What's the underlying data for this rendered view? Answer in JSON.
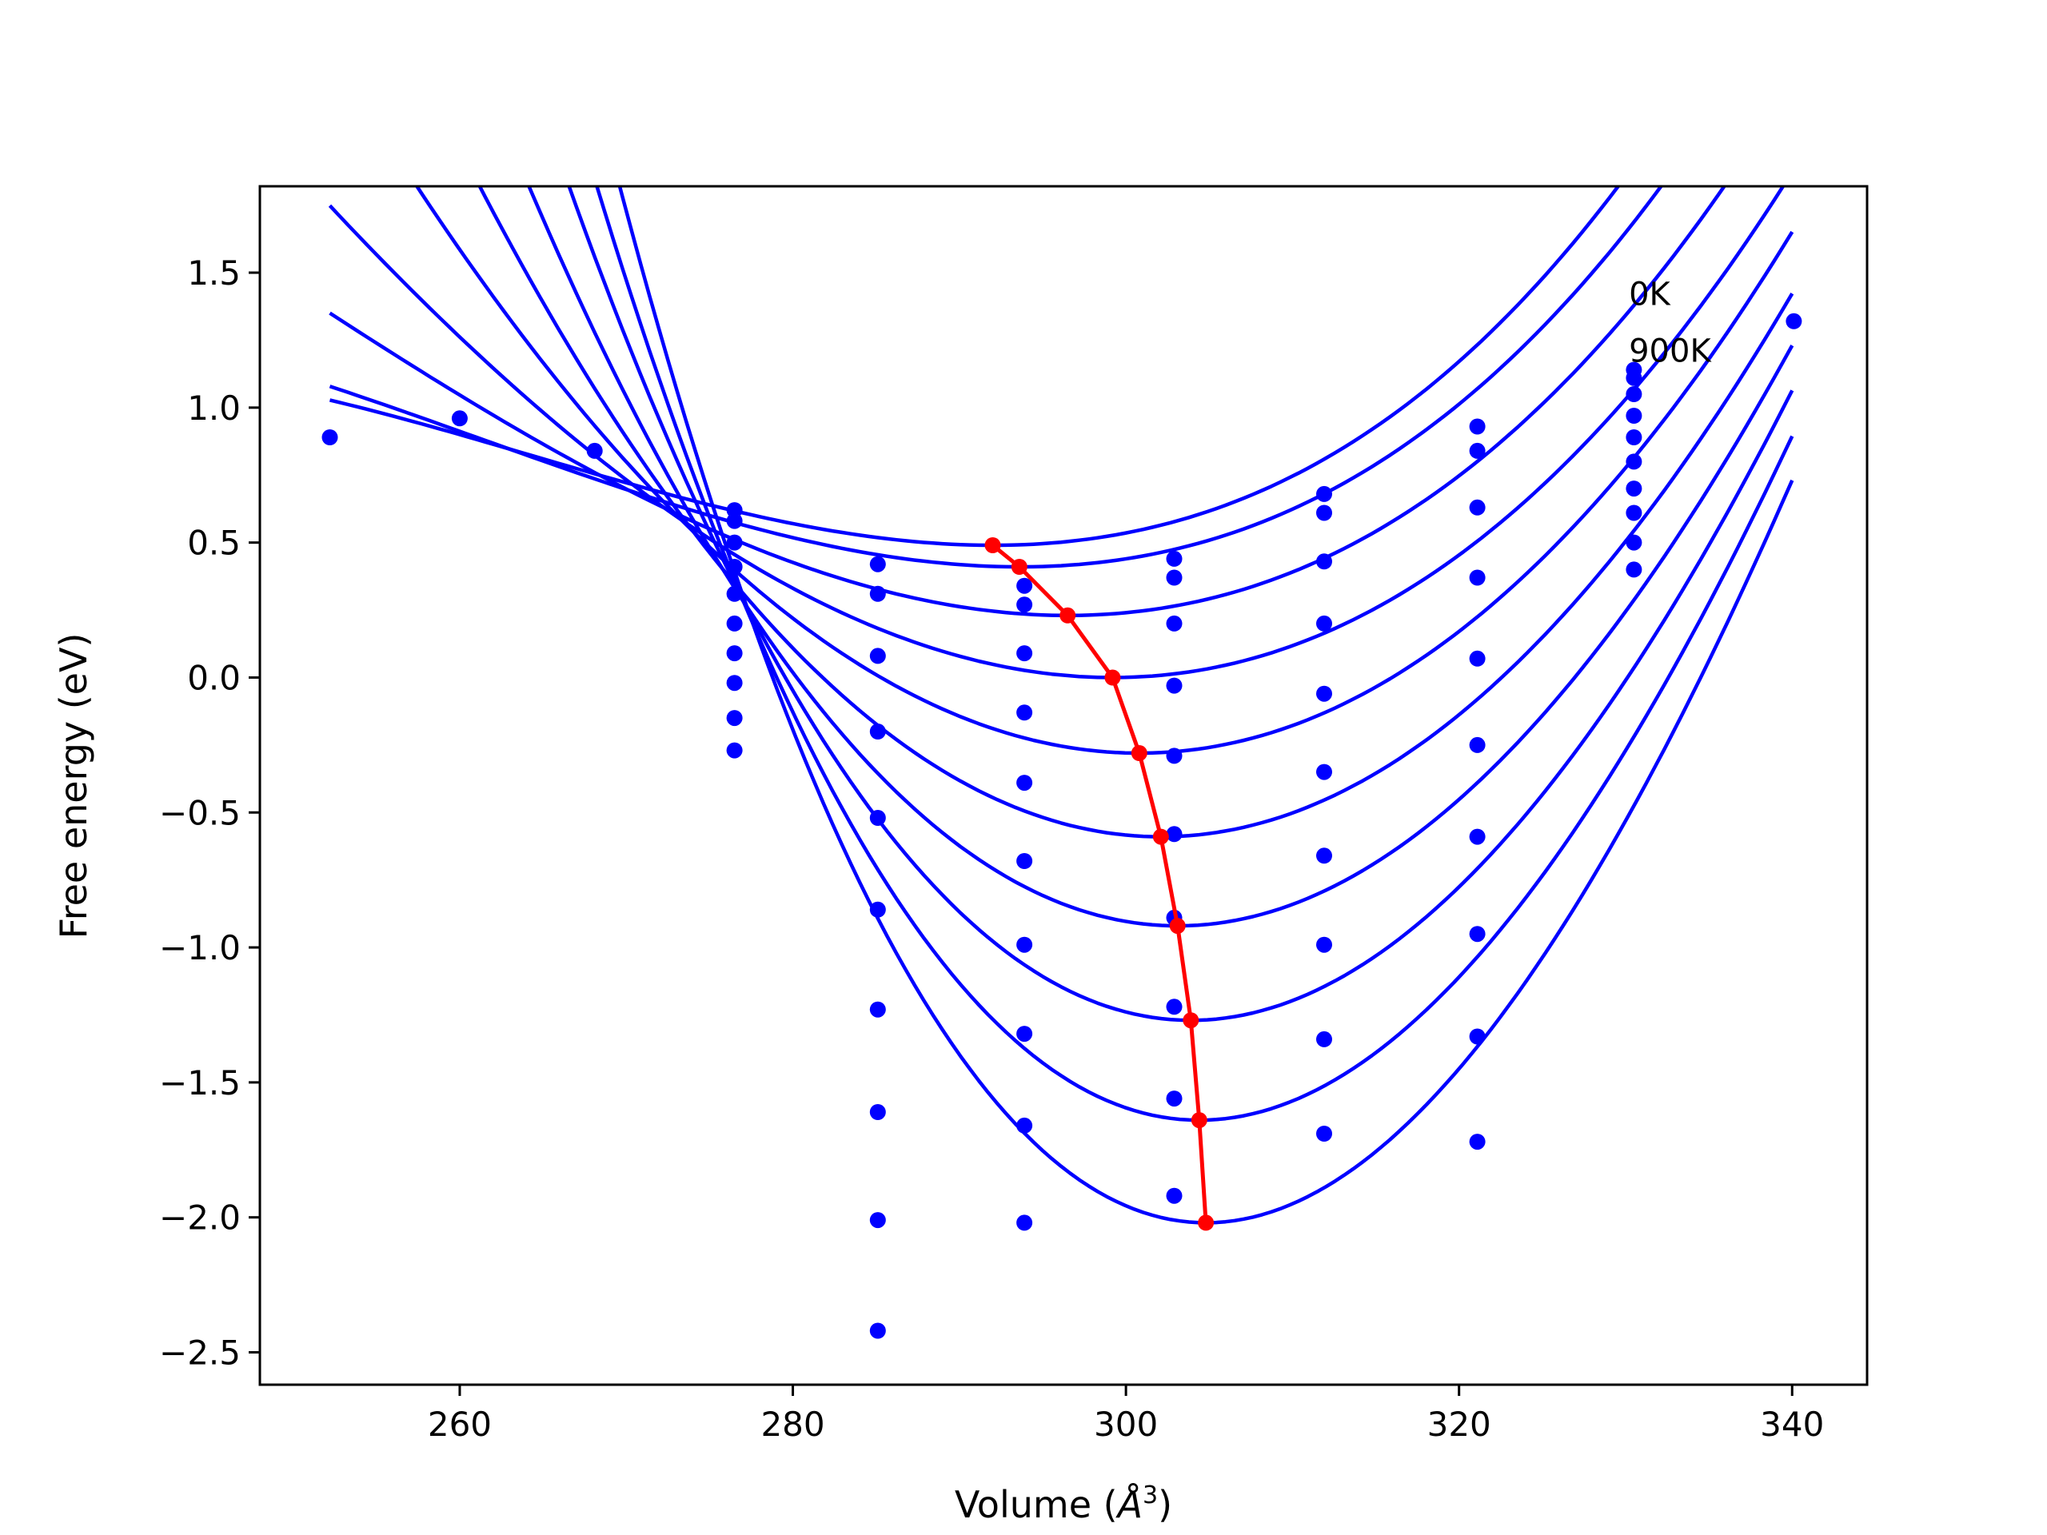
{
  "chart_data": {
    "type": "line",
    "title": "",
    "xlabel": "Volume (",
    "xlabel_symbol": "Å",
    "xlabel_exponent": "3",
    "xlabel_close": ")",
    "ylabel": "Free energy (eV)",
    "xlim": [
      248,
      344.5
    ],
    "ylim": [
      -2.62,
      1.82
    ],
    "xticks": [
      260,
      280,
      300,
      320,
      340
    ],
    "xtick_labels": [
      "260",
      "280",
      "300",
      "320",
      "340"
    ],
    "yticks": [
      -2.5,
      -2.0,
      -1.5,
      -1.0,
      -0.5,
      0.0,
      0.5,
      1.0,
      1.5
    ],
    "ytick_labels": [
      "−2.5",
      "−2.0",
      "−1.5",
      "−1.0",
      "−0.5",
      "0.0",
      "0.5",
      "1.0",
      "1.5"
    ],
    "grid": false,
    "annotations": [
      {
        "text": "0K",
        "x": 330.2,
        "y": 1.38
      },
      {
        "text": "900K",
        "x": 330.2,
        "y": 1.17
      }
    ],
    "fit_colour": "#0000ff",
    "point_colour": "#0000ff",
    "minimum_colour": "#ff0000",
    "fit_x_range": [
      252.2,
      340.0
    ],
    "fitted_curves": [
      {
        "v0": 292.0,
        "e0": 0.49,
        "a": 0.00065,
        "b": 7.8e-06
      },
      {
        "v0": 293.6,
        "e0": 0.41,
        "a": 0.00068,
        "b": 7e-06
      },
      {
        "v0": 296.5,
        "e0": 0.23,
        "a": 0.00081,
        "b": 5.4e-06
      },
      {
        "v0": 299.2,
        "e0": 0.0,
        "a": 0.00097,
        "b": 3.8e-06
      },
      {
        "v0": 300.8,
        "e0": -0.28,
        "a": 0.00119,
        "b": 1.7e-06
      },
      {
        "v0": 302.1,
        "e0": -0.59,
        "a": 0.00142,
        "b": -5e-07
      },
      {
        "v0": 303.1,
        "e0": -0.92,
        "a": 0.00169,
        "b": -3e-06
      },
      {
        "v0": 303.9,
        "e0": -1.27,
        "a": 0.002,
        "b": -5.8e-06
      },
      {
        "v0": 304.4,
        "e0": -1.64,
        "a": 0.00232,
        "b": -9e-06
      },
      {
        "v0": 304.8,
        "e0": -2.02,
        "a": 0.00266,
        "b": -1.25e-05
      }
    ],
    "equilibrium_line": {
      "x": [
        292.0,
        293.6,
        296.5,
        299.2,
        300.8,
        302.1,
        303.1,
        303.9,
        304.4,
        304.8
      ],
      "y": [
        0.49,
        0.41,
        0.23,
        0.0,
        -0.28,
        -0.59,
        -0.92,
        -1.27,
        -1.64,
        -2.02
      ]
    },
    "data_points": [
      {
        "x": 252.2,
        "y": 0.89
      },
      {
        "x": 260.0,
        "y": 0.96
      },
      {
        "x": 268.1,
        "y": 0.84
      },
      {
        "x": 276.5,
        "y": 0.62
      },
      {
        "x": 276.5,
        "y": 0.58
      },
      {
        "x": 276.5,
        "y": 0.5
      },
      {
        "x": 276.5,
        "y": 0.41
      },
      {
        "x": 276.5,
        "y": 0.31
      },
      {
        "x": 276.5,
        "y": 0.2
      },
      {
        "x": 276.5,
        "y": 0.09
      },
      {
        "x": 276.5,
        "y": -0.02
      },
      {
        "x": 276.5,
        "y": -0.15
      },
      {
        "x": 276.5,
        "y": -0.27
      },
      {
        "x": 285.1,
        "y": 0.42
      },
      {
        "x": 285.1,
        "y": 0.31
      },
      {
        "x": 285.1,
        "y": 0.08
      },
      {
        "x": 285.1,
        "y": -0.2
      },
      {
        "x": 285.1,
        "y": -0.52
      },
      {
        "x": 285.1,
        "y": -0.86
      },
      {
        "x": 285.1,
        "y": -1.23
      },
      {
        "x": 285.1,
        "y": -1.61
      },
      {
        "x": 285.1,
        "y": -2.01
      },
      {
        "x": 285.1,
        "y": -2.42
      },
      {
        "x": 293.9,
        "y": 0.34
      },
      {
        "x": 293.9,
        "y": 0.27
      },
      {
        "x": 293.9,
        "y": 0.09
      },
      {
        "x": 293.9,
        "y": -0.13
      },
      {
        "x": 293.9,
        "y": -0.39
      },
      {
        "x": 293.9,
        "y": -0.68
      },
      {
        "x": 293.9,
        "y": -0.99
      },
      {
        "x": 293.9,
        "y": -1.32
      },
      {
        "x": 293.9,
        "y": -1.66
      },
      {
        "x": 293.9,
        "y": -2.02
      },
      {
        "x": 302.9,
        "y": 0.44
      },
      {
        "x": 302.9,
        "y": 0.37
      },
      {
        "x": 302.9,
        "y": 0.2
      },
      {
        "x": 302.9,
        "y": -0.03
      },
      {
        "x": 302.9,
        "y": -0.29
      },
      {
        "x": 302.9,
        "y": -0.58
      },
      {
        "x": 302.9,
        "y": -0.89
      },
      {
        "x": 302.9,
        "y": -1.22
      },
      {
        "x": 302.9,
        "y": -1.56
      },
      {
        "x": 302.9,
        "y": -1.92
      },
      {
        "x": 311.9,
        "y": 0.68
      },
      {
        "x": 311.9,
        "y": 0.61
      },
      {
        "x": 311.9,
        "y": 0.43
      },
      {
        "x": 311.9,
        "y": 0.2
      },
      {
        "x": 311.9,
        "y": -0.06
      },
      {
        "x": 311.9,
        "y": -0.35
      },
      {
        "x": 311.9,
        "y": -0.66
      },
      {
        "x": 311.9,
        "y": -0.99
      },
      {
        "x": 311.9,
        "y": -1.34
      },
      {
        "x": 311.9,
        "y": -1.69
      },
      {
        "x": 321.1,
        "y": 0.93
      },
      {
        "x": 321.1,
        "y": 0.84
      },
      {
        "x": 321.1,
        "y": 0.63
      },
      {
        "x": 321.1,
        "y": 0.37
      },
      {
        "x": 321.1,
        "y": 0.07
      },
      {
        "x": 321.1,
        "y": -0.25
      },
      {
        "x": 321.1,
        "y": -0.59
      },
      {
        "x": 321.1,
        "y": -0.95
      },
      {
        "x": 321.1,
        "y": -1.33
      },
      {
        "x": 321.1,
        "y": -1.72
      },
      {
        "x": 330.5,
        "y": 1.14
      },
      {
        "x": 330.5,
        "y": 1.11
      },
      {
        "x": 330.5,
        "y": 1.05
      },
      {
        "x": 330.5,
        "y": 0.97
      },
      {
        "x": 330.5,
        "y": 0.89
      },
      {
        "x": 330.5,
        "y": 0.8
      },
      {
        "x": 330.5,
        "y": 0.7
      },
      {
        "x": 330.5,
        "y": 0.61
      },
      {
        "x": 330.5,
        "y": 0.5
      },
      {
        "x": 330.5,
        "y": 0.4
      },
      {
        "x": 340.1,
        "y": 1.32
      }
    ]
  }
}
